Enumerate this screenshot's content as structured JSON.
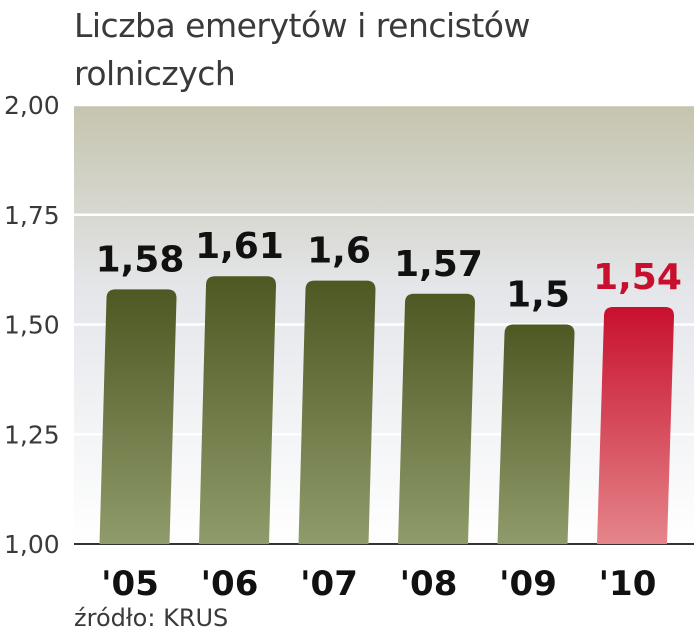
{
  "chart_data": {
    "type": "bar",
    "title": "Liczba emerytów i rencistów rolniczych",
    "categories": [
      "'05",
      "'06",
      "'07",
      "'08",
      "'09",
      "'10"
    ],
    "values": [
      1.58,
      1.61,
      1.6,
      1.57,
      1.5,
      1.54
    ],
    "data_labels": [
      "1,58",
      "1,61",
      "1,6",
      "1,57",
      "1,5",
      "1,54"
    ],
    "yticks": [
      {
        "value": 1.0,
        "label": "1,00"
      },
      {
        "value": 1.25,
        "label": "1,25"
      },
      {
        "value": 1.5,
        "label": "1,50"
      },
      {
        "value": 1.75,
        "label": "1,75"
      },
      {
        "value": 2.0,
        "label": "2,00"
      }
    ],
    "ylim": [
      1.0,
      2.0
    ],
    "grid": true,
    "highlight_index": 5,
    "colors": {
      "bar_dark": "#4f5a25",
      "bar_light": "#8e9a68",
      "highlight_dark": "#c8102e",
      "highlight_light": "#e07a80",
      "highlight_label": "#c8102e",
      "label": "#111111",
      "band_top": "#c7c6b0",
      "band_bottom": "#ffffff"
    },
    "source": "źródło: KRUS"
  }
}
